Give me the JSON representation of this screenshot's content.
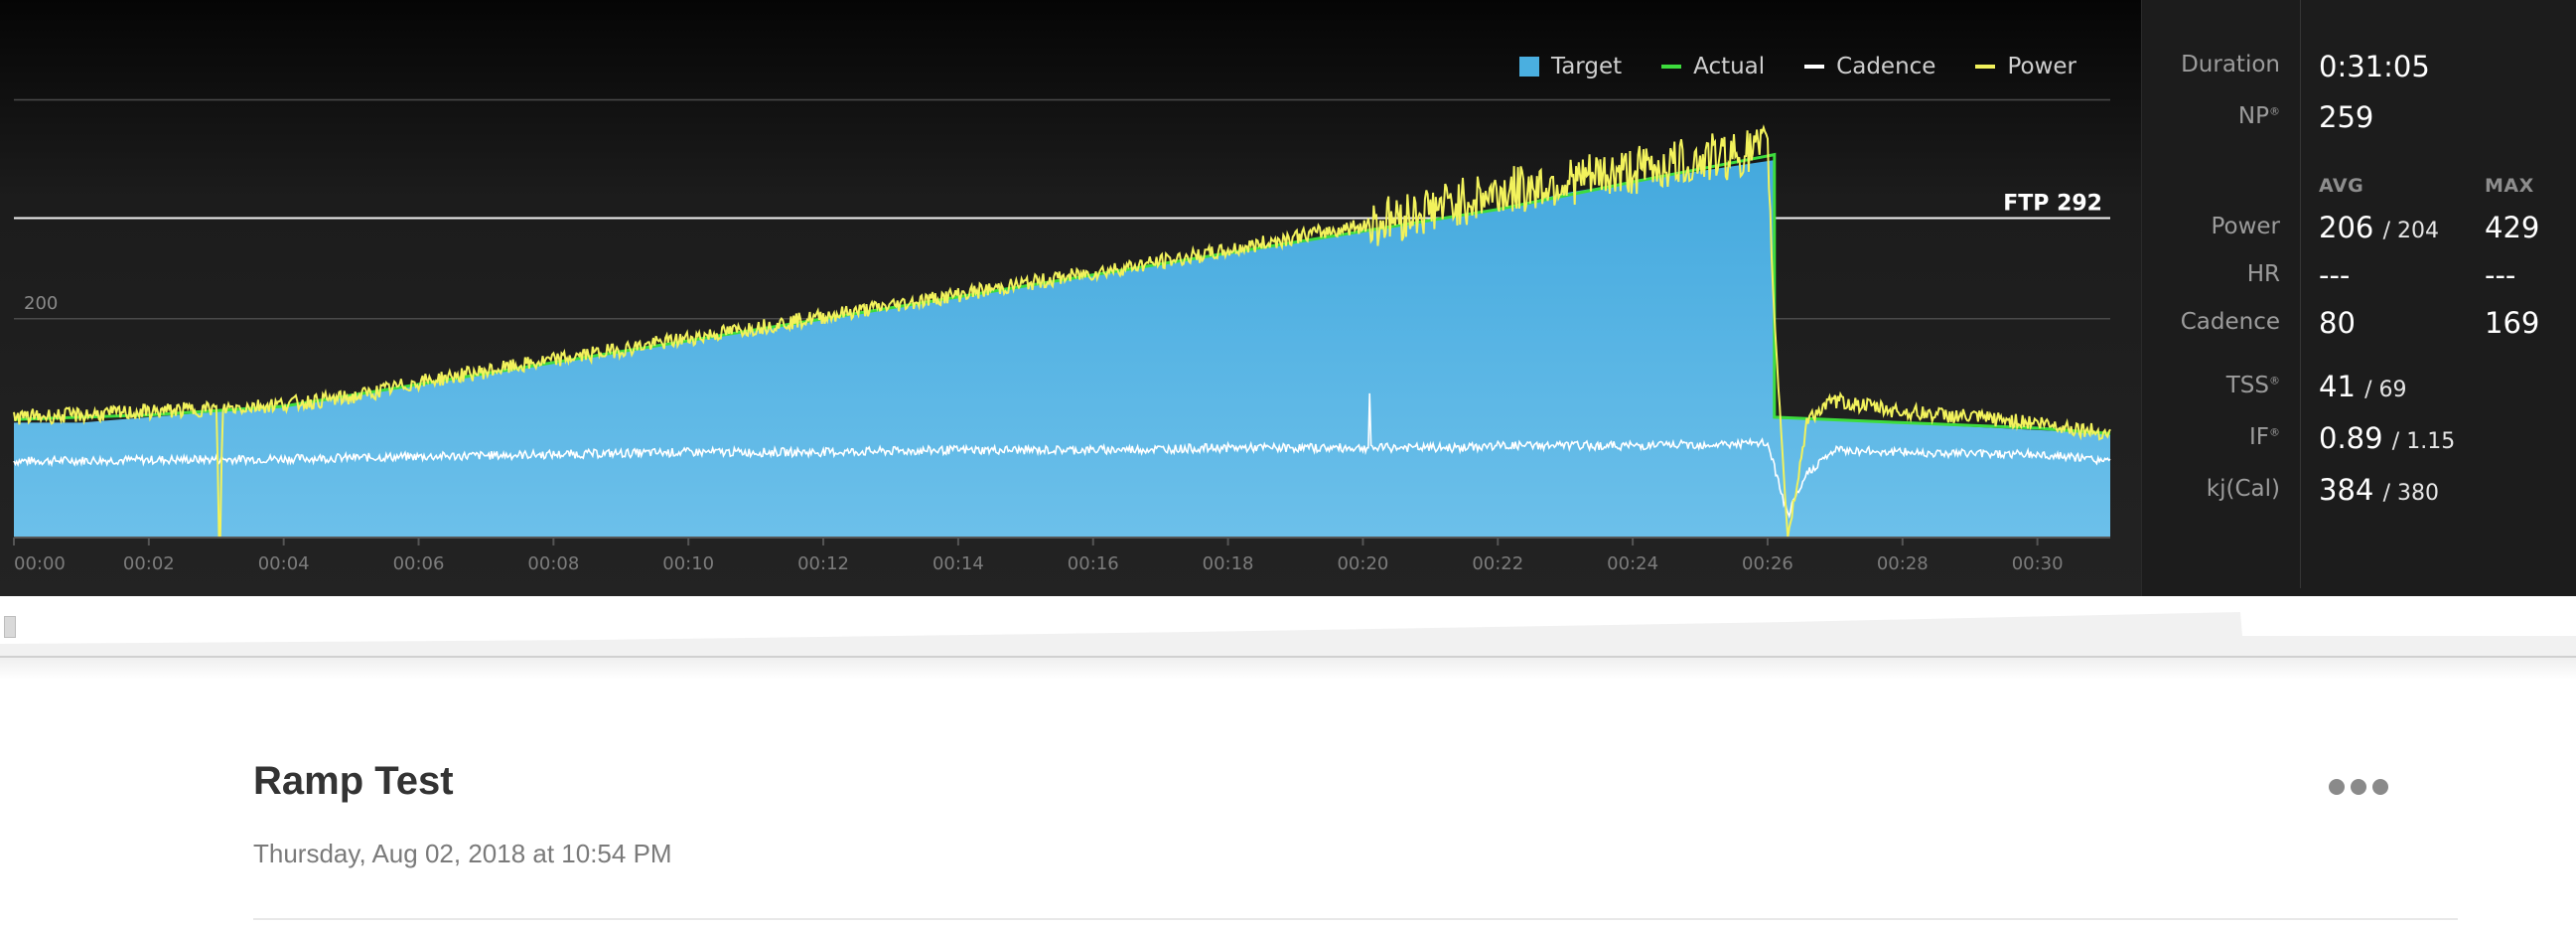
{
  "chart": {
    "legend": [
      {
        "label": "Target",
        "color": "#4aafe0",
        "kind": "box"
      },
      {
        "label": "Actual",
        "color": "#3ddc3d",
        "kind": "line"
      },
      {
        "label": "Cadence",
        "color": "#ffffff",
        "kind": "line"
      },
      {
        "label": "Power",
        "color": "#f2f25c",
        "kind": "line"
      }
    ],
    "ftp_label": "FTP 292",
    "y_tick_label": "200"
  },
  "chart_data": {
    "type": "area",
    "title": "",
    "x_ticks": [
      "00:00",
      "00:02",
      "00:04",
      "00:06",
      "00:08",
      "00:10",
      "00:12",
      "00:14",
      "00:16",
      "00:18",
      "00:20",
      "00:22",
      "00:24",
      "00:26",
      "00:28",
      "00:30"
    ],
    "x_range_minutes": [
      0,
      31.08
    ],
    "y_range": [
      0,
      455
    ],
    "ftp": 292,
    "gridlines": [
      200,
      292,
      400
    ],
    "series": [
      {
        "name": "Target",
        "color": "#4aafe0",
        "x_minutes": [
          0,
          1,
          2,
          3,
          4,
          5,
          6,
          7,
          8,
          9,
          10,
          11,
          12,
          13,
          14,
          15,
          16,
          17,
          18,
          19,
          20,
          21,
          22,
          23,
          24,
          25,
          26.1,
          26.1,
          31.08
        ],
        "values": [
          105,
          105,
          110,
          115,
          120,
          130,
          140,
          150,
          160,
          170,
          180,
          190,
          200,
          210,
          220,
          230,
          240,
          250,
          260,
          270,
          280,
          290,
          300,
          315,
          325,
          335,
          345,
          110,
          95
        ]
      },
      {
        "name": "Actual",
        "color": "#3ddc3d",
        "x_minutes": [
          0,
          2,
          4,
          6,
          8,
          10,
          12,
          14,
          16,
          18,
          20,
          22,
          24,
          26.1,
          26.1,
          28,
          30,
          31.08
        ],
        "values": [
          108,
          112,
          120,
          140,
          160,
          180,
          200,
          220,
          240,
          260,
          280,
          300,
          325,
          350,
          110,
          105,
          100,
          95
        ]
      },
      {
        "name": "Power",
        "color": "#f2f25c",
        "x_minutes": [
          0,
          1,
          2,
          3,
          3.05,
          3.1,
          4,
          5,
          6,
          7,
          8,
          9,
          10,
          11,
          12,
          13,
          14,
          15,
          16,
          17,
          18,
          19,
          20,
          21,
          22,
          23,
          24,
          25,
          26,
          26.1,
          26.3,
          26.6,
          27,
          28,
          29,
          30,
          31.08
        ],
        "values": [
          110,
          112,
          115,
          118,
          0,
          118,
          122,
          128,
          142,
          152,
          162,
          172,
          182,
          192,
          202,
          212,
          222,
          232,
          242,
          252,
          262,
          275,
          285,
          300,
          315,
          325,
          335,
          345,
          355,
          200,
          0,
          110,
          125,
          115,
          110,
          105,
          95
        ]
      },
      {
        "name": "Cadence",
        "color": "#ffffff",
        "x_minutes": [
          0,
          2,
          4,
          6,
          8,
          10,
          12,
          14,
          16,
          18,
          20,
          21.5,
          22,
          24,
          26,
          26.3,
          26.6,
          27,
          28,
          30,
          31.08
        ],
        "values": [
          70,
          71,
          72,
          74,
          76,
          78,
          78,
          80,
          80,
          82,
          82,
          82,
          84,
          84,
          86,
          20,
          60,
          80,
          78,
          76,
          70
        ]
      }
    ]
  },
  "stats": {
    "duration_label": "Duration",
    "duration_value": "0:31:05",
    "np_label": "NP",
    "np_value": "259",
    "avg_header": "AVG",
    "max_header": "MAX",
    "power_label": "Power",
    "power_avg": "206",
    "power_avg_small": "/ 204",
    "power_max": "429",
    "hr_label": "HR",
    "hr_avg": "---",
    "hr_max": "---",
    "cadence_label": "Cadence",
    "cadence_avg": "80",
    "cadence_max": "169",
    "tss_label": "TSS",
    "tss_value": "41",
    "tss_small": "/ 69",
    "if_label": "IF",
    "if_value": "0.89",
    "if_small": "/ 1.15",
    "kj_label": "kj(Cal)",
    "kj_value": "384",
    "kj_small": "/ 380",
    "reg_mark": "®"
  },
  "workout": {
    "title": "Ramp Test",
    "date": "Thursday, Aug 02, 2018 at 10:54 PM",
    "more_icon": "ellipsis-icon"
  }
}
